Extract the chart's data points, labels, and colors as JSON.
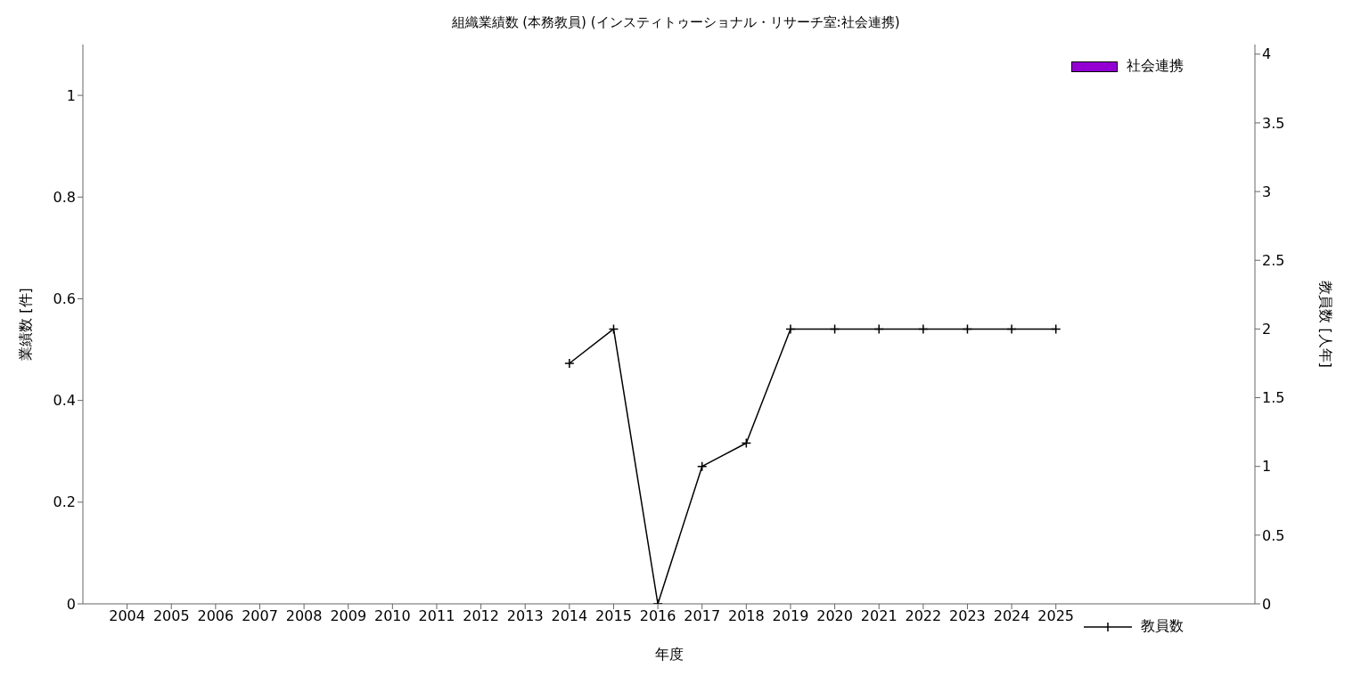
{
  "chart_data": {
    "type": "bar",
    "title": "組織業績数 (本務教員) (インスティトゥーショナル・リサーチ室:社会連携)",
    "xlabel": "年度",
    "ylabel": "業績数 [件]",
    "y2label": "教員数 [人年]",
    "x": [
      2004,
      2005,
      2006,
      2007,
      2008,
      2009,
      2010,
      2011,
      2012,
      2013,
      2014,
      2015,
      2016,
      2017,
      2018,
      2019,
      2020,
      2021,
      2022,
      2023,
      2024,
      2025
    ],
    "xlim": [
      2003,
      2029.5
    ],
    "xticks": [
      2004,
      2005,
      2006,
      2007,
      2008,
      2009,
      2010,
      2011,
      2012,
      2013,
      2014,
      2015,
      2016,
      2017,
      2018,
      2019,
      2020,
      2021,
      2022,
      2023,
      2024,
      2025
    ],
    "ylim": [
      0,
      1.1
    ],
    "yticks": [
      0,
      0.2,
      0.4,
      0.6,
      0.8,
      1
    ],
    "y2lim": [
      0,
      4.07
    ],
    "y2ticks": [
      0,
      0.5,
      1,
      1.5,
      2,
      2.5,
      3,
      3.5,
      4
    ],
    "series": [
      {
        "name": "社会連携",
        "color": "#9400d3",
        "values": [
          0,
          0,
          0,
          0,
          0,
          0,
          0,
          0,
          0,
          0,
          0,
          0,
          0,
          0,
          0,
          0,
          0,
          0,
          0,
          0,
          0,
          0
        ]
      },
      {
        "name": "教員数",
        "type": "line",
        "axis": "y2",
        "color": "#000000",
        "marker": "cross",
        "values": [
          null,
          null,
          null,
          null,
          null,
          null,
          null,
          null,
          null,
          null,
          1.75,
          2,
          0,
          1,
          1.17,
          2,
          2,
          2,
          2,
          2,
          2,
          2
        ]
      }
    ],
    "legend": "right"
  }
}
